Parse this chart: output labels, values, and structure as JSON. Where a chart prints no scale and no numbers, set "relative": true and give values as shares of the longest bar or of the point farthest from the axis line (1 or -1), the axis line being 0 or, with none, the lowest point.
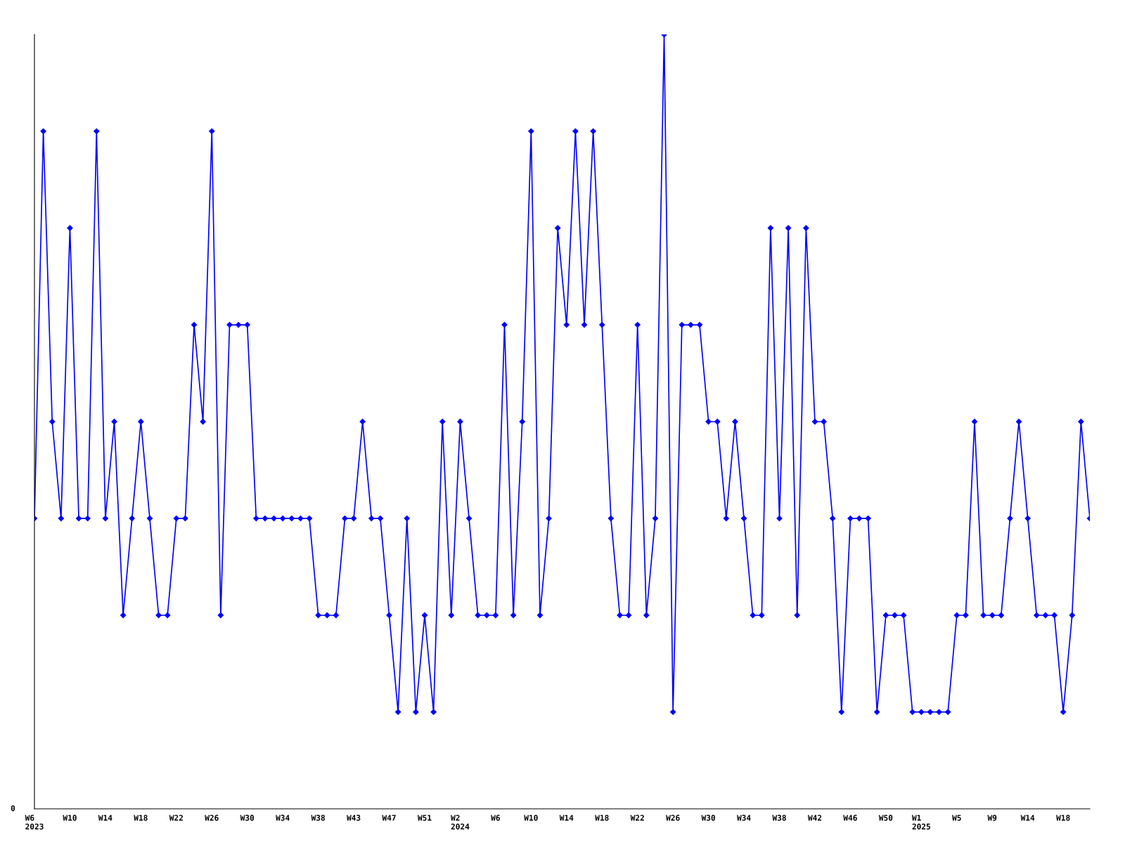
{
  "chart_data": {
    "type": "line",
    "relative": true,
    "marker": "diamond",
    "grid": false,
    "annotations": [
      "0"
    ],
    "categories": [
      "W6\n2023",
      null,
      null,
      null,
      "W10",
      null,
      null,
      null,
      "W14",
      null,
      null,
      null,
      "W18",
      null,
      null,
      null,
      "W22",
      null,
      null,
      null,
      "W26",
      null,
      null,
      null,
      "W30",
      null,
      null,
      null,
      "W34",
      null,
      null,
      null,
      "W38",
      null,
      null,
      null,
      "W43",
      null,
      null,
      null,
      "W47",
      null,
      null,
      null,
      "W51",
      null,
      null,
      null,
      "W2\n2024",
      null,
      null,
      null,
      "W6",
      null,
      null,
      null,
      "W10",
      null,
      null,
      null,
      "W14",
      null,
      null,
      null,
      "W18",
      null,
      null,
      null,
      "W22",
      null,
      null,
      null,
      "W26",
      null,
      null,
      null,
      "W30",
      null,
      null,
      null,
      "W34",
      null,
      null,
      null,
      "W38",
      null,
      null,
      null,
      "W42",
      null,
      null,
      null,
      "W46",
      null,
      null,
      null,
      "W50",
      null,
      null,
      null,
      "W1\n2025",
      null,
      null,
      null,
      "W5",
      null,
      null,
      null,
      "W9",
      null,
      null,
      null,
      "W14",
      null,
      null,
      null,
      "W18",
      null,
      null,
      null
    ],
    "series": [
      {
        "color": "#0000ff",
        "values": [
          0.375,
          0.875,
          0.5,
          0.375,
          0.75,
          0.375,
          0.375,
          0.875,
          0.375,
          0.5,
          0.25,
          0.375,
          0.5,
          0.375,
          0.25,
          0.25,
          0.375,
          0.375,
          0.625,
          0.5,
          0.875,
          0.25,
          0.625,
          0.625,
          0.625,
          0.375,
          0.375,
          0.375,
          0.375,
          0.375,
          0.375,
          0.375,
          0.25,
          0.25,
          0.25,
          0.375,
          0.375,
          0.5,
          0.375,
          0.375,
          0.25,
          0.125,
          0.375,
          0.125,
          0.25,
          0.125,
          0.5,
          0.25,
          0.5,
          0.375,
          0.25,
          0.25,
          0.25,
          0.625,
          0.25,
          0.5,
          0.875,
          0.25,
          0.375,
          0.75,
          0.625,
          0.875,
          0.625,
          0.875,
          0.625,
          0.375,
          0.25,
          0.25,
          0.625,
          0.25,
          0.375,
          1,
          0.125,
          0.625,
          0.625,
          0.625,
          0.5,
          0.5,
          0.375,
          0.5,
          0.375,
          0.25,
          0.25,
          0.75,
          0.375,
          0.75,
          0.25,
          0.75,
          0.5,
          0.5,
          0.375,
          0.125,
          0.375,
          0.375,
          0.375,
          0.125,
          0.25,
          0.25,
          0.25,
          0.125,
          0.125,
          0.125,
          0.125,
          0.125,
          0.25,
          0.25,
          0.5,
          0.25,
          0.25,
          0.25,
          0.375,
          0.5,
          0.375,
          0.25,
          0.25,
          0.25,
          0.125,
          0.25,
          0.5,
          0.375
        ]
      }
    ]
  }
}
